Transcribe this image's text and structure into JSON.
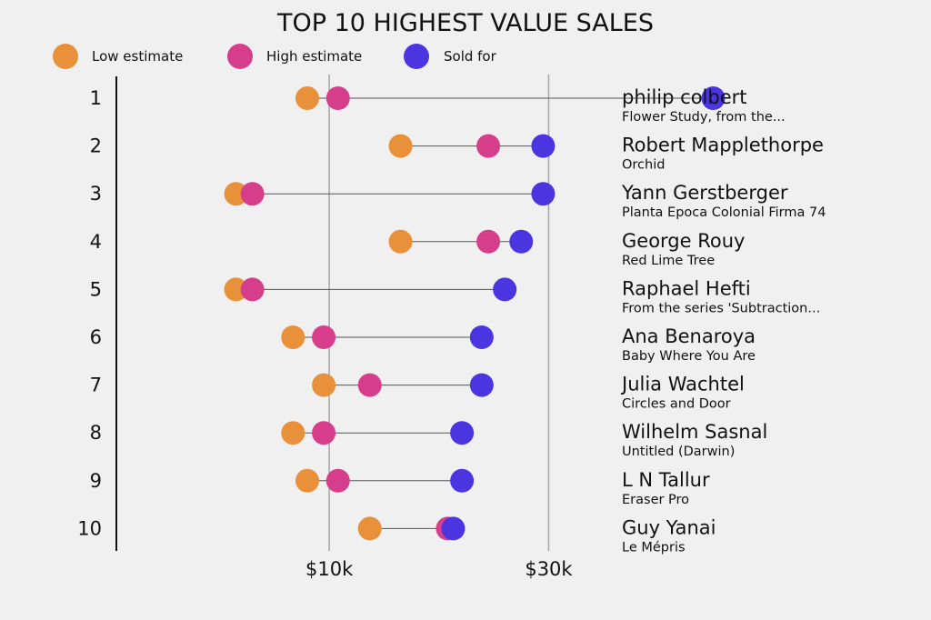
{
  "chart_data": {
    "type": "dumbbell",
    "title": "TOP 10 HIGHEST VALUE SALES",
    "xlabel": "",
    "ylabel": "",
    "xlim": [
      -9400,
      38000
    ],
    "xticks": [
      {
        "value": 10000,
        "label": "$10k"
      },
      {
        "value": 30000,
        "label": "$30k"
      }
    ],
    "grid": "vertical lines at ticks",
    "legend_position": "top-left",
    "series": [
      {
        "key": "low",
        "name": "Low estimate",
        "color": "#e8913a"
      },
      {
        "key": "high",
        "name": "High estimate",
        "color": "#d63d8b"
      },
      {
        "key": "sold",
        "name": "Sold for",
        "color": "#4a35e0"
      }
    ],
    "rows": [
      {
        "rank": "1",
        "artist": "philip colbert",
        "work": "Flower Study, from the...",
        "low": 8000,
        "high": 10800,
        "sold": 45000
      },
      {
        "rank": "2",
        "artist": "Robert Mapplethorpe",
        "work": "Orchid",
        "low": 16500,
        "high": 24500,
        "sold": 29500
      },
      {
        "rank": "3",
        "artist": "Yann Gerstberger",
        "work": "Planta Epoca Colonial Firma 74",
        "low": 1500,
        "high": 3000,
        "sold": 29500
      },
      {
        "rank": "4",
        "artist": "George Rouy",
        "work": "Red Lime Tree",
        "low": 16500,
        "high": 24500,
        "sold": 27500
      },
      {
        "rank": "5",
        "artist": "Raphael Hefti",
        "work": "From the series 'Subtraction...",
        "low": 1500,
        "high": 3000,
        "sold": 26000
      },
      {
        "rank": "6",
        "artist": "Ana Benaroya",
        "work": "Baby Where You Are",
        "low": 6700,
        "high": 9500,
        "sold": 23900
      },
      {
        "rank": "7",
        "artist": "Julia Wachtel",
        "work": "Circles and Door",
        "low": 9500,
        "high": 13700,
        "sold": 23900
      },
      {
        "rank": "8",
        "artist": "Wilhelm Sasnal",
        "work": "Untitled (Darwin)",
        "low": 6700,
        "high": 9500,
        "sold": 22100
      },
      {
        "rank": "9",
        "artist": "L N Tallur",
        "work": "Eraser Pro",
        "low": 8000,
        "high": 10800,
        "sold": 22100
      },
      {
        "rank": "10",
        "artist": "Guy Yanai",
        "work": "Le Mépris",
        "low": 13700,
        "high": 20800,
        "sold": 21300
      }
    ]
  }
}
